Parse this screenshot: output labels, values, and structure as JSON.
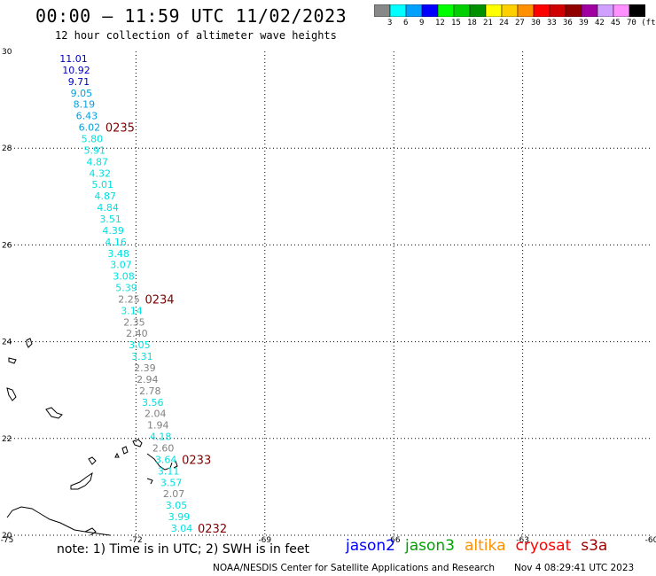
{
  "header": {
    "title": "00:00 – 11:59 UTC 11/02/2023",
    "subtitle": "12 hour collection of altimeter wave heights"
  },
  "legend": {
    "colors": [
      "#888888",
      "#00ffff",
      "#00a0ff",
      "#0000ff",
      "#00ff00",
      "#00d000",
      "#009000",
      "#ffff00",
      "#ffd000",
      "#ff9000",
      "#ff0000",
      "#d00000",
      "#900000",
      "#a000a0",
      "#d0a0ff",
      "#ff90ff",
      "#000000"
    ],
    "labels": [
      "3",
      "6",
      "9",
      "12",
      "15",
      "18",
      "21",
      "24",
      "27",
      "30",
      "33",
      "36",
      "39",
      "42",
      "45",
      "70 (ft)"
    ]
  },
  "map": {
    "lon_range": [
      -75,
      -60
    ],
    "lat_range": [
      20,
      30
    ],
    "lon_ticks": [
      "-75",
      "-72",
      "-69",
      "-66",
      "-63",
      "-60"
    ],
    "lat_ticks": [
      "30",
      "28",
      "26",
      "24",
      "22",
      "20"
    ],
    "grid_lon": [
      -72,
      -69,
      -66,
      -63
    ],
    "grid_lat": [
      28,
      26,
      24,
      22
    ],
    "coastline_color": "#000000"
  },
  "track": {
    "points": [
      {
        "v": "11.01",
        "c": "#0000c0"
      },
      {
        "v": "10.92",
        "c": "#0000c0"
      },
      {
        "v": "9.71",
        "c": "#0000c0"
      },
      {
        "v": "9.05",
        "c": "#00a0e0"
      },
      {
        "v": "8.19",
        "c": "#00a0e0"
      },
      {
        "v": "6.43",
        "c": "#00a0e0"
      },
      {
        "v": "6.02",
        "c": "#00a0e0"
      },
      {
        "v": "5.80",
        "c": "#00e0e0"
      },
      {
        "v": "5.91",
        "c": "#00e0e0"
      },
      {
        "v": "4.87",
        "c": "#00e0e0"
      },
      {
        "v": "4.32",
        "c": "#00e0e0"
      },
      {
        "v": "5.01",
        "c": "#00e0e0"
      },
      {
        "v": "4.87",
        "c": "#00e0e0"
      },
      {
        "v": "4.84",
        "c": "#00e0e0"
      },
      {
        "v": "3.51",
        "c": "#00e0e0"
      },
      {
        "v": "4.39",
        "c": "#00e0e0"
      },
      {
        "v": "4.16",
        "c": "#00e0e0"
      },
      {
        "v": "3.48",
        "c": "#00e0e0"
      },
      {
        "v": "3.07",
        "c": "#00e0e0"
      },
      {
        "v": "3.08",
        "c": "#00e0e0"
      },
      {
        "v": "5.39",
        "c": "#00e0e0"
      },
      {
        "v": "2.25",
        "c": "#808080"
      },
      {
        "v": "3.14",
        "c": "#00e0e0"
      },
      {
        "v": "2.35",
        "c": "#808080"
      },
      {
        "v": "2.40",
        "c": "#808080"
      },
      {
        "v": "3.05",
        "c": "#00e0e0"
      },
      {
        "v": "3.31",
        "c": "#00e0e0"
      },
      {
        "v": "2.39",
        "c": "#808080"
      },
      {
        "v": "2.94",
        "c": "#808080"
      },
      {
        "v": "2.78",
        "c": "#808080"
      },
      {
        "v": "3.56",
        "c": "#00e0e0"
      },
      {
        "v": "2.04",
        "c": "#808080"
      },
      {
        "v": "1.94",
        "c": "#808080"
      },
      {
        "v": "4.18",
        "c": "#00e0e0"
      },
      {
        "v": "2.60",
        "c": "#808080"
      },
      {
        "v": "3.64",
        "c": "#00e0e0"
      },
      {
        "v": "3.11",
        "c": "#00e0e0"
      },
      {
        "v": "3.57",
        "c": "#00e0e0"
      },
      {
        "v": "2.07",
        "c": "#808080"
      },
      {
        "v": "3.05",
        "c": "#00e0e0"
      },
      {
        "v": "3.99",
        "c": "#00e0e0"
      },
      {
        "v": "3.04",
        "c": "#00e0e0"
      }
    ],
    "time_labels": [
      {
        "label": "0235",
        "after_index": 6
      },
      {
        "label": "0234",
        "after_index": 21
      },
      {
        "label": "0233",
        "after_index": 35
      },
      {
        "label": "0232",
        "after_index": 41
      }
    ],
    "time_label_color": "#800000"
  },
  "footer": {
    "note": "note:  1) Time is in UTC;  2) SWH is in feet",
    "satellites": [
      {
        "name": "jason2",
        "color": "#0000ff"
      },
      {
        "name": "jason3",
        "color": "#00a000"
      },
      {
        "name": "altika",
        "color": "#ff9000"
      },
      {
        "name": "cryosat",
        "color": "#ff0000"
      },
      {
        "name": "s3a",
        "color": "#a00000"
      }
    ],
    "credit": "NOAA/NESDIS Center for Satellite Applications and Research",
    "timestamp": "Nov  4 08:29:41 UTC 2023"
  }
}
